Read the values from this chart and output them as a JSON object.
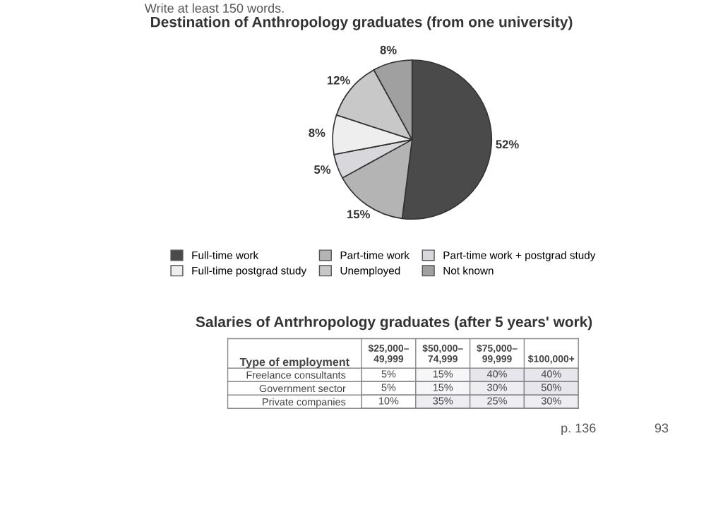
{
  "chart_data": [
    {
      "type": "pie",
      "title": "Destination of Anthropology graduates (from one university)",
      "categories": [
        "Full-time work",
        "Part-time work",
        "Part-time work + postgrad study",
        "Full-time postgrad study",
        "Unemployed",
        "Not known"
      ],
      "values": [
        52,
        15,
        5,
        8,
        12,
        8
      ],
      "colors": [
        "#4a4a4a",
        "#b4b4b4",
        "#d8d8dc",
        "#eeeeee",
        "#c8c8c8",
        "#a0a0a0"
      ],
      "value_labels": [
        "52%",
        "15%",
        "5%",
        "8%",
        "12%",
        "8%"
      ],
      "legend": "bottom",
      "annotations": [
        "Write at least 150 words."
      ]
    },
    {
      "type": "heatmap",
      "title": "Salaries of Antrhropology graduates (after 5 years' work)",
      "ylabel": "Type of employment",
      "categories": [
        "$25,000–\n49,999",
        "$50,000–\n74,999",
        "$75,000–\n99,999",
        "$100,000+"
      ],
      "y_categories": [
        "Freelance consultants",
        "Government sector",
        "Private companies"
      ],
      "cells": [
        [
          5,
          15,
          40,
          40
        ],
        [
          5,
          15,
          30,
          50
        ],
        [
          10,
          35,
          25,
          30
        ]
      ],
      "cell_labels": [
        [
          "5%",
          "15%",
          "40%",
          "40%"
        ],
        [
          "5%",
          "15%",
          "30%",
          "50%"
        ],
        [
          "10%",
          "35%",
          "25%",
          "30%"
        ]
      ],
      "annotations": [
        "p. 136",
        "93"
      ]
    }
  ]
}
